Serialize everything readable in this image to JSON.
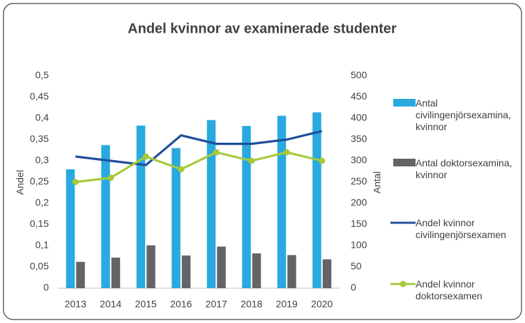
{
  "chart_data": {
    "type": "bar-line",
    "title": "Andel kvinnor av examinerade studenter",
    "ylabel": "Andel",
    "y2label": "Antal",
    "categories": [
      "2013",
      "2014",
      "2015",
      "2016",
      "2017",
      "2018",
      "2019",
      "2020"
    ],
    "series": [
      {
        "name": "Antal civilingenjörsexamina, kvinnor",
        "kind": "bar",
        "axis": "y2",
        "color": "#29a9e0",
        "values": [
          280,
          337,
          383,
          330,
          396,
          382,
          406,
          414
        ]
      },
      {
        "name": "Antal doktorsexamina, kvinnor",
        "kind": "bar",
        "axis": "y2",
        "color": "#636466",
        "values": [
          62,
          72,
          101,
          77,
          98,
          82,
          78,
          68
        ]
      },
      {
        "name": "Andel kvinnor civilingenjörsexamen",
        "kind": "line",
        "color": "#1f4e9a",
        "values": [
          0.31,
          0.3,
          0.29,
          0.36,
          0.34,
          0.34,
          0.35,
          0.37
        ]
      },
      {
        "name": "Andel kvinnor doktorsexamen",
        "kind": "line",
        "marker": true,
        "color": "#a6c939",
        "values": [
          0.25,
          0.26,
          0.31,
          0.28,
          0.32,
          0.3,
          0.32,
          0.3
        ]
      }
    ],
    "ylim": [
      0,
      0.5
    ],
    "yticks": [
      0,
      {
        "value": 0.05,
        "label": "0,05"
      },
      {
        "value": 0.1,
        "label": "0,1"
      },
      {
        "value": 0.15,
        "label": "0,15"
      },
      {
        "value": 0.2,
        "label": "0,2"
      },
      {
        "value": 0.25,
        "label": "0,25"
      },
      {
        "value": 0.3,
        "label": "0,3"
      },
      {
        "value": 0.35,
        "label": "0,35"
      },
      {
        "value": 0.4,
        "label": "0,4"
      },
      {
        "value": 0.45,
        "label": "0,45"
      },
      {
        "value": 0.5,
        "label": "0,5"
      }
    ],
    "y2lim": [
      0,
      500
    ],
    "y2ticks": [
      0,
      50,
      100,
      150,
      200,
      250,
      300,
      350,
      400,
      450,
      500
    ],
    "legend": "right"
  }
}
